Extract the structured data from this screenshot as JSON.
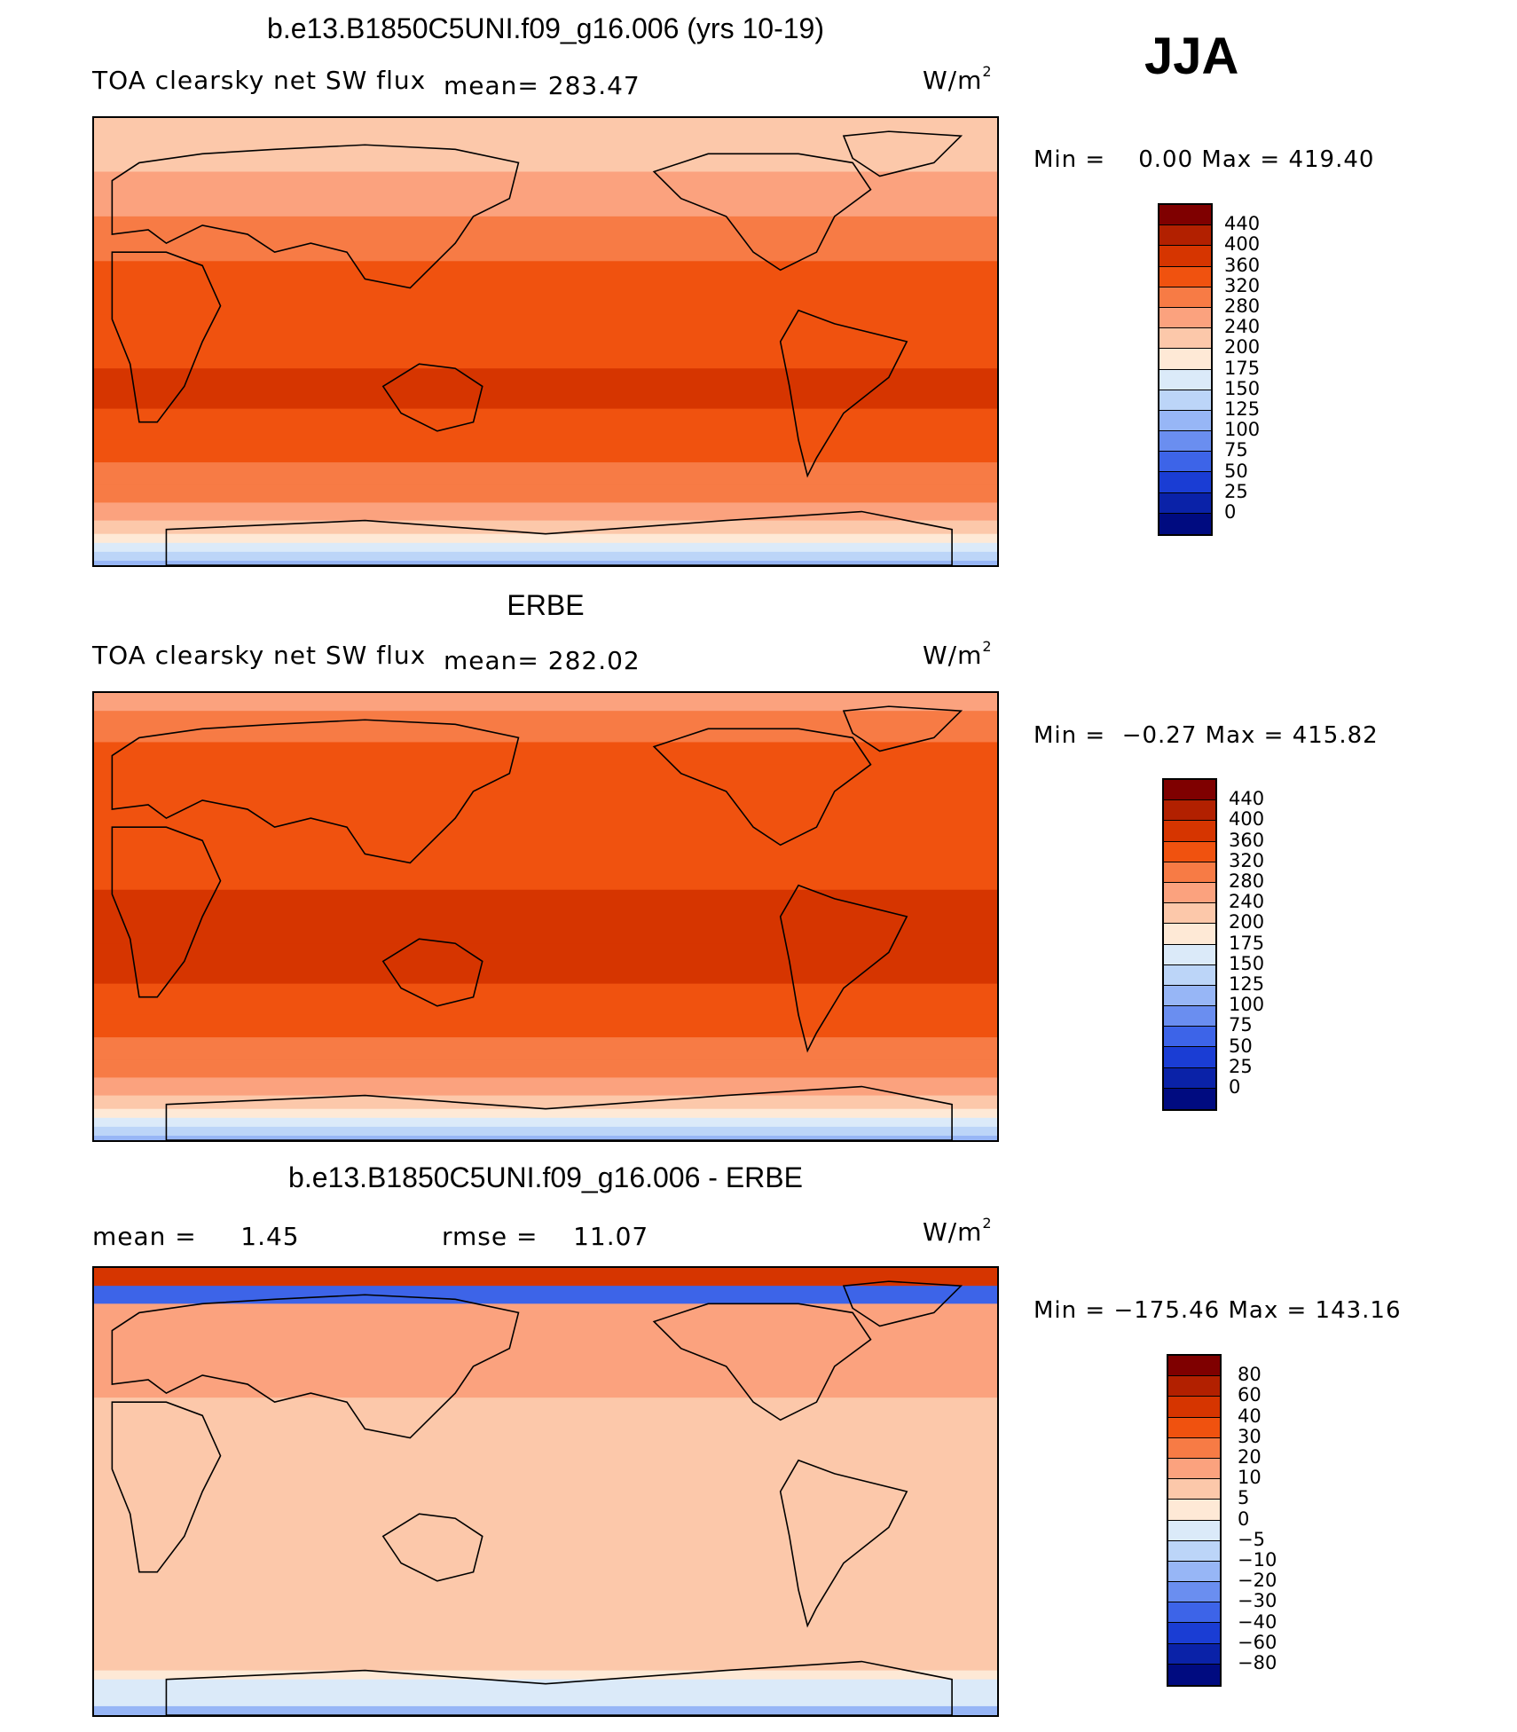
{
  "season": "JJA",
  "panels": [
    {
      "title": "b.e13.B1850C5UNI.f09_g16.006 (yrs 10-19)",
      "variable": "TOA clearsky net SW flux",
      "mean_label": "mean= 283.47",
      "units": "W/m",
      "units_exp": "2",
      "minmax": "Min =    0.00 Max = 419.40",
      "colorbar": {
        "labels": [
          "440",
          "400",
          "360",
          "320",
          "280",
          "240",
          "200",
          "175",
          "150",
          "125",
          "100",
          "75",
          "50",
          "25",
          "0"
        ],
        "colors": [
          "#7f0000",
          "#b22000",
          "#d63500",
          "#f0520f",
          "#f77b45",
          "#fba27e",
          "#fcc8aa",
          "#fee9d6",
          "#dbeaf9",
          "#bcd5f8",
          "#97b6f6",
          "#6a8ef0",
          "#3d64e8",
          "#1a3dd4",
          "#0a22a8",
          "#000b80"
        ]
      },
      "band_levels": [
        200,
        220,
        240,
        260,
        300,
        320,
        340,
        360,
        350,
        340,
        300,
        280,
        240,
        200,
        180,
        160,
        130,
        110,
        90,
        60,
        40,
        20,
        10
      ],
      "band_fracs": [
        0.07,
        0.05,
        0.04,
        0.06,
        0.1,
        0.12,
        0.12,
        0.09,
        0.07,
        0.05,
        0.05,
        0.04,
        0.04,
        0.03,
        0.02,
        0.02,
        0.02,
        0.02,
        0.03,
        0.02,
        0.02,
        0.05,
        0.1
      ]
    },
    {
      "title": "ERBE",
      "variable": "TOA clearsky net SW flux",
      "mean_label": "mean= 282.02",
      "units": "W/m",
      "units_exp": "2",
      "minmax": "Min =  −0.27 Max = 415.82",
      "colorbar": {
        "labels": [
          "440",
          "400",
          "360",
          "320",
          "280",
          "240",
          "200",
          "175",
          "150",
          "125",
          "100",
          "75",
          "50",
          "25",
          "0"
        ],
        "colors": [
          "#7f0000",
          "#b22000",
          "#d63500",
          "#f0520f",
          "#f77b45",
          "#fba27e",
          "#fcc8aa",
          "#fee9d6",
          "#dbeaf9",
          "#bcd5f8",
          "#97b6f6",
          "#6a8ef0",
          "#3d64e8",
          "#1a3dd4",
          "#0a22a8",
          "#000b80"
        ]
      },
      "band_levels": [
        260,
        300,
        320,
        340,
        340,
        350,
        360,
        360,
        350,
        340,
        300,
        280,
        240,
        200,
        180,
        160,
        130,
        110,
        90,
        60,
        40,
        20,
        10
      ],
      "band_fracs": [
        0.04,
        0.07,
        0.05,
        0.06,
        0.1,
        0.12,
        0.12,
        0.09,
        0.07,
        0.05,
        0.05,
        0.04,
        0.04,
        0.03,
        0.02,
        0.02,
        0.02,
        0.02,
        0.03,
        0.02,
        0.02,
        0.05,
        0.1
      ]
    },
    {
      "title": "b.e13.B1850C5UNI.f09_g16.006 - ERBE",
      "mean_label": "mean =     1.45",
      "rmse_label": "rmse =    11.07",
      "units": "W/m",
      "units_exp": "2",
      "minmax": "Min = −175.46 Max = 143.16",
      "colorbar": {
        "labels": [
          "80",
          "60",
          "40",
          "30",
          "20",
          "10",
          "5",
          "0",
          "−5",
          "−10",
          "−20",
          "−30",
          "−40",
          "−60",
          "−80"
        ],
        "colors": [
          "#7f0000",
          "#b22000",
          "#d63500",
          "#f0520f",
          "#f77b45",
          "#fba27e",
          "#fcc8aa",
          "#fee9d6",
          "#dbeaf9",
          "#bcd5f8",
          "#97b6f6",
          "#6a8ef0",
          "#3d64e8",
          "#1a3dd4",
          "#0a22a8",
          "#000b80"
        ]
      },
      "band_levels": [
        40,
        -40,
        10,
        10,
        10,
        5,
        5,
        5,
        5,
        5,
        5,
        5,
        5,
        5,
        0,
        -5,
        -5,
        -5,
        -20,
        -5,
        5,
        5,
        5
      ],
      "band_fracs": [
        0.04,
        0.04,
        0.05,
        0.06,
        0.1,
        0.12,
        0.12,
        0.09,
        0.07,
        0.05,
        0.05,
        0.04,
        0.04,
        0.03,
        0.02,
        0.02,
        0.02,
        0.02,
        0.03,
        0.02,
        0.02,
        0.05,
        0.1
      ]
    }
  ]
}
